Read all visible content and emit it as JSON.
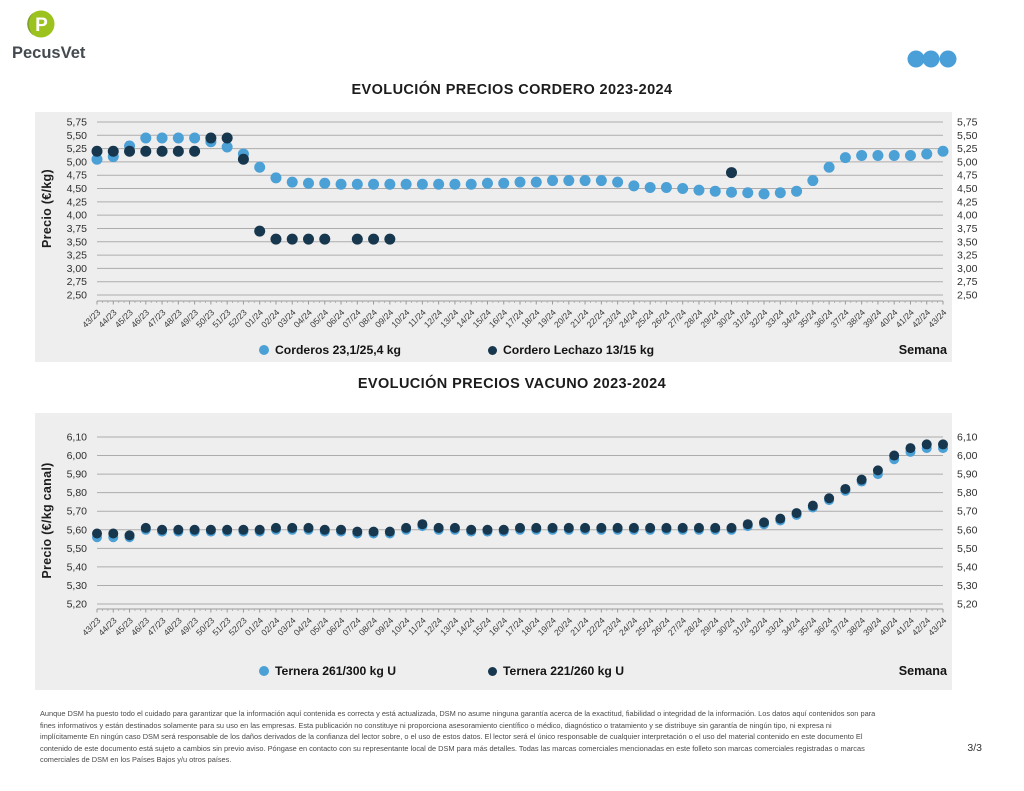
{
  "brand": {
    "logo_text": "PecusVet",
    "logo_letter": "P",
    "logo_green": "#9CC21D",
    "logo_green_dark": "#7EA02C",
    "logo_text_color": "#444A50"
  },
  "header": {
    "dots_icon_color": "#4A9FD8"
  },
  "colors": {
    "panel_bg": "#efeeee",
    "gridline": "#adacac",
    "series_light_blue": "#4BA0D6",
    "series_dark_navy": "#16374E"
  },
  "chart_data": [
    {
      "type": "scatter",
      "title": "EVOLUCIÓN PRECIOS CORDERO 2023-2024",
      "ylabel": "Precio (€/kg)",
      "xlabel": "Semana",
      "ylim": [
        2.5,
        5.75
      ],
      "ytick_step": 0.25,
      "grid": true,
      "legend_position": "bottom",
      "categories": [
        "43/23",
        "44/23",
        "45/23",
        "46/23",
        "47/23",
        "48/23",
        "49/23",
        "50/23",
        "51/23",
        "52/23",
        "01/24",
        "02/24",
        "03/24",
        "04/24",
        "05/24",
        "06/24",
        "07/24",
        "08/24",
        "09/24",
        "10/24",
        "11/24",
        "12/24",
        "13/24",
        "14/24",
        "15/24",
        "16/24",
        "17/24",
        "18/24",
        "19/24",
        "20/24",
        "21/24",
        "22/24",
        "23/24",
        "24/24",
        "25/24",
        "26/24",
        "27/24",
        "28/24",
        "29/24",
        "30/24",
        "31/24",
        "32/24",
        "33/24",
        "34/24",
        "35/24",
        "36/24",
        "37/24",
        "38/24",
        "39/24",
        "40/24",
        "41/24",
        "42/24",
        "43/24"
      ],
      "series": [
        {
          "name": "Corderos 23,1/25,4 kg",
          "color": "#4BA0D6",
          "values": [
            5.05,
            5.1,
            5.3,
            5.45,
            5.45,
            5.45,
            5.45,
            5.38,
            5.28,
            5.15,
            4.9,
            4.7,
            4.62,
            4.6,
            4.6,
            4.58,
            4.58,
            4.58,
            4.58,
            4.58,
            4.58,
            4.58,
            4.58,
            4.58,
            4.6,
            4.6,
            4.62,
            4.62,
            4.65,
            4.65,
            4.65,
            4.65,
            4.62,
            4.55,
            4.52,
            4.52,
            4.5,
            4.47,
            4.45,
            4.43,
            4.42,
            4.4,
            4.42,
            4.45,
            4.65,
            4.9,
            5.08,
            5.12,
            5.12,
            5.12,
            5.12,
            5.15,
            5.2
          ]
        },
        {
          "name": "Cordero Lechazo 13/15 kg",
          "color": "#16374E",
          "values": [
            5.2,
            5.2,
            5.2,
            5.2,
            5.2,
            5.2,
            5.2,
            5.45,
            5.45,
            5.05,
            3.7,
            3.55,
            3.55,
            3.55,
            3.55,
            null,
            3.55,
            3.55,
            3.55,
            null,
            null,
            null,
            null,
            null,
            null,
            null,
            null,
            null,
            null,
            null,
            null,
            null,
            null,
            null,
            null,
            null,
            null,
            null,
            null,
            4.8,
            null,
            null,
            null,
            null,
            null,
            null,
            null,
            null,
            null,
            null,
            null,
            null,
            null
          ]
        }
      ]
    },
    {
      "type": "scatter",
      "title": "EVOLUCIÓN PRECIOS VACUNO 2023-2024",
      "ylabel": "Precio (€/kg canal)",
      "xlabel": "Semana",
      "ylim": [
        5.2,
        6.1
      ],
      "ytick_step": 0.1,
      "grid": true,
      "legend_position": "bottom",
      "categories": [
        "43/23",
        "44/23",
        "45/23",
        "46/23",
        "47/23",
        "48/23",
        "49/23",
        "50/23",
        "51/23",
        "52/23",
        "01/24",
        "02/24",
        "03/24",
        "04/24",
        "05/24",
        "06/24",
        "07/24",
        "08/24",
        "09/24",
        "10/24",
        "11/24",
        "12/24",
        "13/24",
        "14/24",
        "15/24",
        "16/24",
        "17/24",
        "18/24",
        "19/24",
        "20/24",
        "21/24",
        "22/24",
        "23/24",
        "24/24",
        "25/24",
        "26/24",
        "27/24",
        "28/24",
        "29/24",
        "30/24",
        "31/24",
        "32/24",
        "33/24",
        "34/24",
        "35/24",
        "36/24",
        "37/24",
        "38/24",
        "39/24",
        "40/24",
        "41/24",
        "42/24",
        "43/24"
      ],
      "series": [
        {
          "name": "Ternera 261/300 kg U",
          "color": "#4BA0D6",
          "values": [
            5.56,
            5.56,
            5.56,
            5.6,
            5.59,
            5.59,
            5.59,
            5.59,
            5.59,
            5.59,
            5.59,
            5.6,
            5.6,
            5.6,
            5.59,
            5.59,
            5.58,
            5.58,
            5.58,
            5.6,
            5.62,
            5.6,
            5.6,
            5.59,
            5.59,
            5.59,
            5.6,
            5.6,
            5.6,
            5.6,
            5.6,
            5.6,
            5.6,
            5.6,
            5.6,
            5.6,
            5.6,
            5.6,
            5.6,
            5.6,
            5.62,
            5.63,
            5.65,
            5.68,
            5.72,
            5.76,
            5.81,
            5.86,
            5.9,
            5.98,
            6.02,
            6.04,
            6.04
          ]
        },
        {
          "name": "Ternera 221/260 kg U",
          "color": "#16374E",
          "values": [
            5.58,
            5.58,
            5.57,
            5.61,
            5.6,
            5.6,
            5.6,
            5.6,
            5.6,
            5.6,
            5.6,
            5.61,
            5.61,
            5.61,
            5.6,
            5.6,
            5.59,
            5.59,
            5.59,
            5.61,
            5.63,
            5.61,
            5.61,
            5.6,
            5.6,
            5.6,
            5.61,
            5.61,
            5.61,
            5.61,
            5.61,
            5.61,
            5.61,
            5.61,
            5.61,
            5.61,
            5.61,
            5.61,
            5.61,
            5.61,
            5.63,
            5.64,
            5.66,
            5.69,
            5.73,
            5.77,
            5.82,
            5.87,
            5.92,
            6.0,
            6.04,
            6.06,
            6.06
          ]
        }
      ]
    }
  ],
  "footer": {
    "disclaimer": "Aunque DSM ha puesto todo el cuidado para garantizar que la información aquí contenida es correcta y está actualizada, DSM no asume ninguna garantía acerca de la exactitud, fiabilidad o integridad de la información. Los datos aquí contenidos son para\nfines informativos y están destinados solamente para su uso en las empresas. Esta publicación no constituye ni proporciona asesoramiento científico o médico, diagnóstico o tratamiento y se distribuye sin garantía de ningún tipo, ni expresa ni\nimplícitamente En ningún caso DSM será responsable de los daños derivados de la confianza del lector sobre, o el uso de estos datos. El lector será el único responsable de cualquier interpretación o el uso del material contenido en este documento El\ncontenido de este documento está sujeto a cambios sin previo aviso. Póngase en contacto con su representante local de DSM para más detalles. Todas las marcas comerciales mencionadas en este folleto son marcas comerciales registradas o marcas\ncomerciales de DSM en los Países Bajos y/u otros países.",
    "page": "3/3"
  }
}
